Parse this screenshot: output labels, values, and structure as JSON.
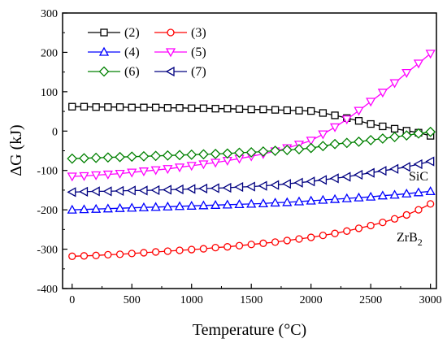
{
  "chart_data": {
    "type": "line",
    "xlabel": "Temperature (°C)",
    "ylabel": "ΔG (kJ)",
    "xlim": [
      -80,
      3050
    ],
    "ylim": [
      -400,
      300
    ],
    "xticks": [
      0,
      500,
      1000,
      1500,
      2000,
      2500,
      3000
    ],
    "yticks": [
      -400,
      -300,
      -200,
      -100,
      0,
      100,
      200,
      300
    ],
    "x": [
      0,
      100,
      200,
      300,
      400,
      500,
      600,
      700,
      800,
      900,
      1000,
      1100,
      1200,
      1300,
      1400,
      1500,
      1600,
      1700,
      1800,
      1900,
      2000,
      2100,
      2200,
      2300,
      2400,
      2500,
      2600,
      2700,
      2800,
      2900,
      3000
    ],
    "series": [
      {
        "name": "(2)",
        "color": "#000000",
        "marker": "square",
        "values": [
          62,
          62,
          61,
          61,
          61,
          60,
          60,
          60,
          59,
          59,
          58,
          58,
          57,
          57,
          56,
          55,
          55,
          54,
          53,
          52,
          51,
          46,
          40,
          33,
          26,
          18,
          12,
          6,
          1,
          -4,
          -12
        ]
      },
      {
        "name": "(3)",
        "color": "#ff0000",
        "marker": "circle",
        "values": [
          -318,
          -317,
          -316,
          -314,
          -313,
          -311,
          -309,
          -307,
          -305,
          -303,
          -301,
          -299,
          -296,
          -294,
          -291,
          -288,
          -285,
          -282,
          -278,
          -274,
          -270,
          -265,
          -260,
          -254,
          -247,
          -240,
          -232,
          -223,
          -213,
          -200,
          -185
        ]
      },
      {
        "name": "(4)",
        "color": "#0000ff",
        "marker": "triangle-up",
        "values": [
          -200,
          -199,
          -198,
          -197,
          -196,
          -195,
          -194,
          -193,
          -192,
          -191,
          -190,
          -189,
          -188,
          -187,
          -186,
          -185,
          -184,
          -182,
          -181,
          -179,
          -177,
          -175,
          -173,
          -171,
          -169,
          -167,
          -164,
          -162,
          -159,
          -156,
          -153
        ]
      },
      {
        "name": "(5)",
        "color": "#ff00ff",
        "marker": "triangle-down",
        "values": [
          -115,
          -114,
          -112,
          -110,
          -108,
          -105,
          -102,
          -99,
          -96,
          -92,
          -88,
          -84,
          -80,
          -75,
          -70,
          -64,
          -58,
          -51,
          -43,
          -34,
          -24,
          -8,
          10,
          30,
          52,
          75,
          98,
          122,
          148,
          172,
          197
        ]
      },
      {
        "name": "(6)",
        "color": "#008000",
        "marker": "diamond",
        "values": [
          -70,
          -69,
          -68,
          -67,
          -66,
          -65,
          -64,
          -63,
          -62,
          -61,
          -60,
          -59,
          -58,
          -57,
          -55,
          -54,
          -52,
          -50,
          -48,
          -46,
          -43,
          -38,
          -33,
          -30,
          -27,
          -23,
          -19,
          -15,
          -11,
          -6,
          -2
        ]
      },
      {
        "name": "(7)",
        "color": "#000080",
        "marker": "triangle-left",
        "values": [
          -155,
          -154,
          -153,
          -153,
          -152,
          -151,
          -151,
          -150,
          -149,
          -148,
          -147,
          -146,
          -145,
          -144,
          -142,
          -141,
          -139,
          -137,
          -134,
          -131,
          -128,
          -124,
          -120,
          -116,
          -111,
          -106,
          -101,
          -96,
          -91,
          -84,
          -77
        ]
      }
    ],
    "annotations": {
      "sic": "SiC",
      "zrb2_main": "ZrB",
      "zrb2_sub": "2"
    },
    "legend_position": "top-left",
    "grid": false
  }
}
